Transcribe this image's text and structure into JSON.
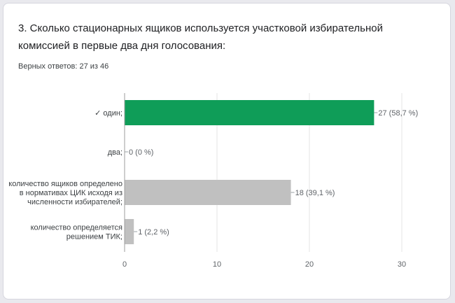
{
  "question": {
    "title": "3. Сколько стационарных ящиков используется участковой избирательной комиссией в первые два дня голосования:",
    "summary": "Верных ответов: 27 из 46"
  },
  "colors": {
    "correct": "#0f9d58",
    "other": "#c0c0c0",
    "axis": "#9e9e9e",
    "grid": "#e6e6e6"
  },
  "chart_data": {
    "type": "bar",
    "orientation": "horizontal",
    "categories": [
      [
        "✓ один;"
      ],
      [
        "два;"
      ],
      [
        "количество ящиков определено",
        "в нормативах ЦИК исходя из",
        "численности избирателей;"
      ],
      [
        "количество определяется",
        "решением ТИК;"
      ]
    ],
    "values": [
      27,
      0,
      18,
      1
    ],
    "value_labels": [
      "27 (58,7 %)",
      "0 (0 %)",
      "18 (39,1 %)",
      "1 (2,2 %)"
    ],
    "correct": [
      true,
      false,
      false,
      false
    ],
    "xlim": [
      0,
      30
    ],
    "xticks": [
      0,
      10,
      20,
      30
    ],
    "grid": true
  }
}
